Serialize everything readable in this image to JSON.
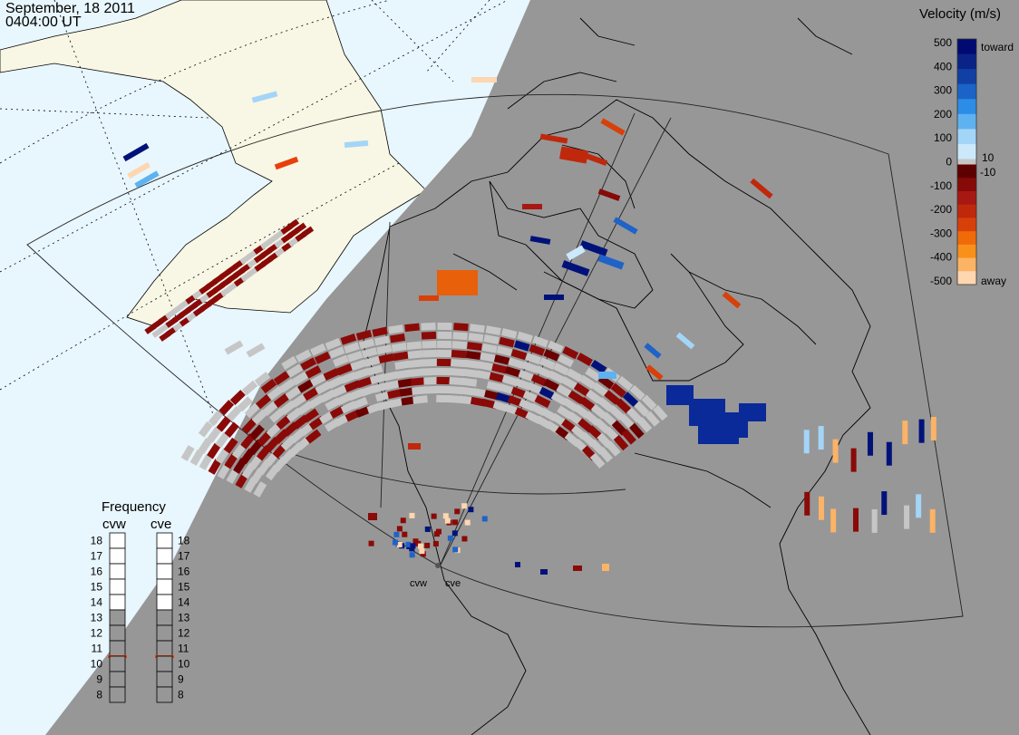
{
  "header": {
    "date": "September, 18 2011",
    "time": "0404:00 UT"
  },
  "velocity_legend": {
    "title": "Velocity (m/s)",
    "toward_label": "toward",
    "away_label": "away",
    "ticks": [
      "500",
      "400",
      "300",
      "200",
      "100",
      "0",
      "-100",
      "-200",
      "-300",
      "-400",
      "-500"
    ],
    "inner_ticks": [
      "10",
      "-10"
    ],
    "colors_toward": [
      "#cbe9fb",
      "#a3d5f7",
      "#5fb2f0",
      "#2b8de6",
      "#1c63c8",
      "#1140a4",
      "#0a2386",
      "#000a72"
    ],
    "colors_away": [
      "#5d0000",
      "#860a08",
      "#a81812",
      "#c0280c",
      "#d8400a",
      "#ef6a08",
      "#f8901a",
      "#fbb366",
      "#fed6b0"
    ],
    "ground_scatter_color": "#c6c6c6"
  },
  "frequency_legend": {
    "title": "Frequency",
    "radars": [
      {
        "name": "cvw",
        "selected": "11"
      },
      {
        "name": "cve",
        "selected": "11"
      }
    ],
    "ticks": [
      "18",
      "17",
      "16",
      "15",
      "14",
      "13",
      "12",
      "11",
      "10",
      "9",
      "8"
    ],
    "marker_color": "#e8400c"
  },
  "radar_sites": [
    {
      "name": "cvw"
    },
    {
      "name": "cve"
    }
  ],
  "colors": {
    "ocean_day": "#e8f6fd",
    "land_day": "#f8f6e4",
    "night": "#979797",
    "coast": "#000000"
  }
}
